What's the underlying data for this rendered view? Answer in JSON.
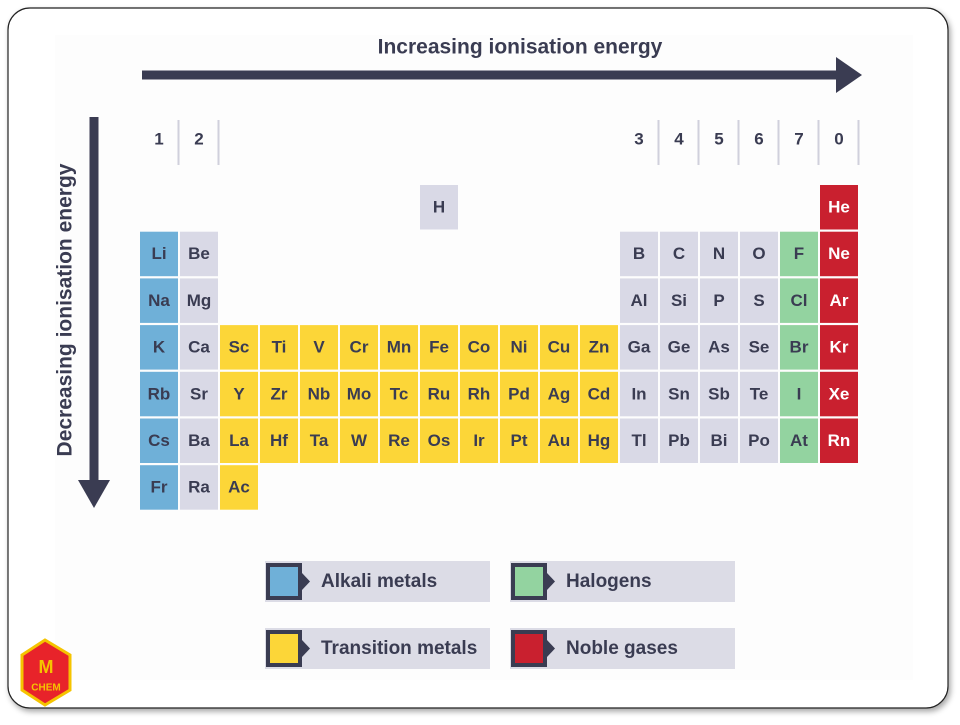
{
  "header": {
    "horizontal_arrow": "Increasing ionisation energy",
    "vertical_arrow": "Decreasing ionisation energy"
  },
  "table": {
    "group_labels": [
      "1",
      "2",
      null,
      null,
      null,
      null,
      null,
      null,
      null,
      null,
      null,
      null,
      "3",
      "4",
      "5",
      "6",
      "7",
      "0"
    ],
    "rows": [
      [
        null,
        null,
        null,
        null,
        null,
        null,
        null,
        "H",
        null,
        null,
        null,
        null,
        null,
        null,
        null,
        null,
        null,
        "He"
      ],
      [
        "Li",
        "Be",
        null,
        null,
        null,
        null,
        null,
        null,
        null,
        null,
        null,
        null,
        "B",
        "C",
        "N",
        "O",
        "F",
        "Ne"
      ],
      [
        "Na",
        "Mg",
        null,
        null,
        null,
        null,
        null,
        null,
        null,
        null,
        null,
        null,
        "Al",
        "Si",
        "P",
        "S",
        "Cl",
        "Ar"
      ],
      [
        "K",
        "Ca",
        "Sc",
        "Ti",
        "V",
        "Cr",
        "Mn",
        "Fe",
        "Co",
        "Ni",
        "Cu",
        "Zn",
        "Ga",
        "Ge",
        "As",
        "Se",
        "Br",
        "Kr"
      ],
      [
        "Rb",
        "Sr",
        "Y",
        "Zr",
        "Nb",
        "Mo",
        "Tc",
        "Ru",
        "Rh",
        "Pd",
        "Ag",
        "Cd",
        "In",
        "Sn",
        "Sb",
        "Te",
        "I",
        "Xe"
      ],
      [
        "Cs",
        "Ba",
        "La",
        "Hf",
        "Ta",
        "W",
        "Re",
        "Os",
        "Ir",
        "Pt",
        "Au",
        "Hg",
        "Tl",
        "Pb",
        "Bi",
        "Po",
        "At",
        "Rn"
      ],
      [
        "Fr",
        "Ra",
        "Ac"
      ]
    ]
  },
  "legend": [
    {
      "label": "Alkali metals",
      "color": "#6fb0d8"
    },
    {
      "label": "Halogens",
      "color": "#93d3a0"
    },
    {
      "label": "Transition metals",
      "color": "#fcd638"
    },
    {
      "label": "Noble gases",
      "color": "#c9202f"
    }
  ],
  "logo": {
    "text": "CHEM"
  }
}
